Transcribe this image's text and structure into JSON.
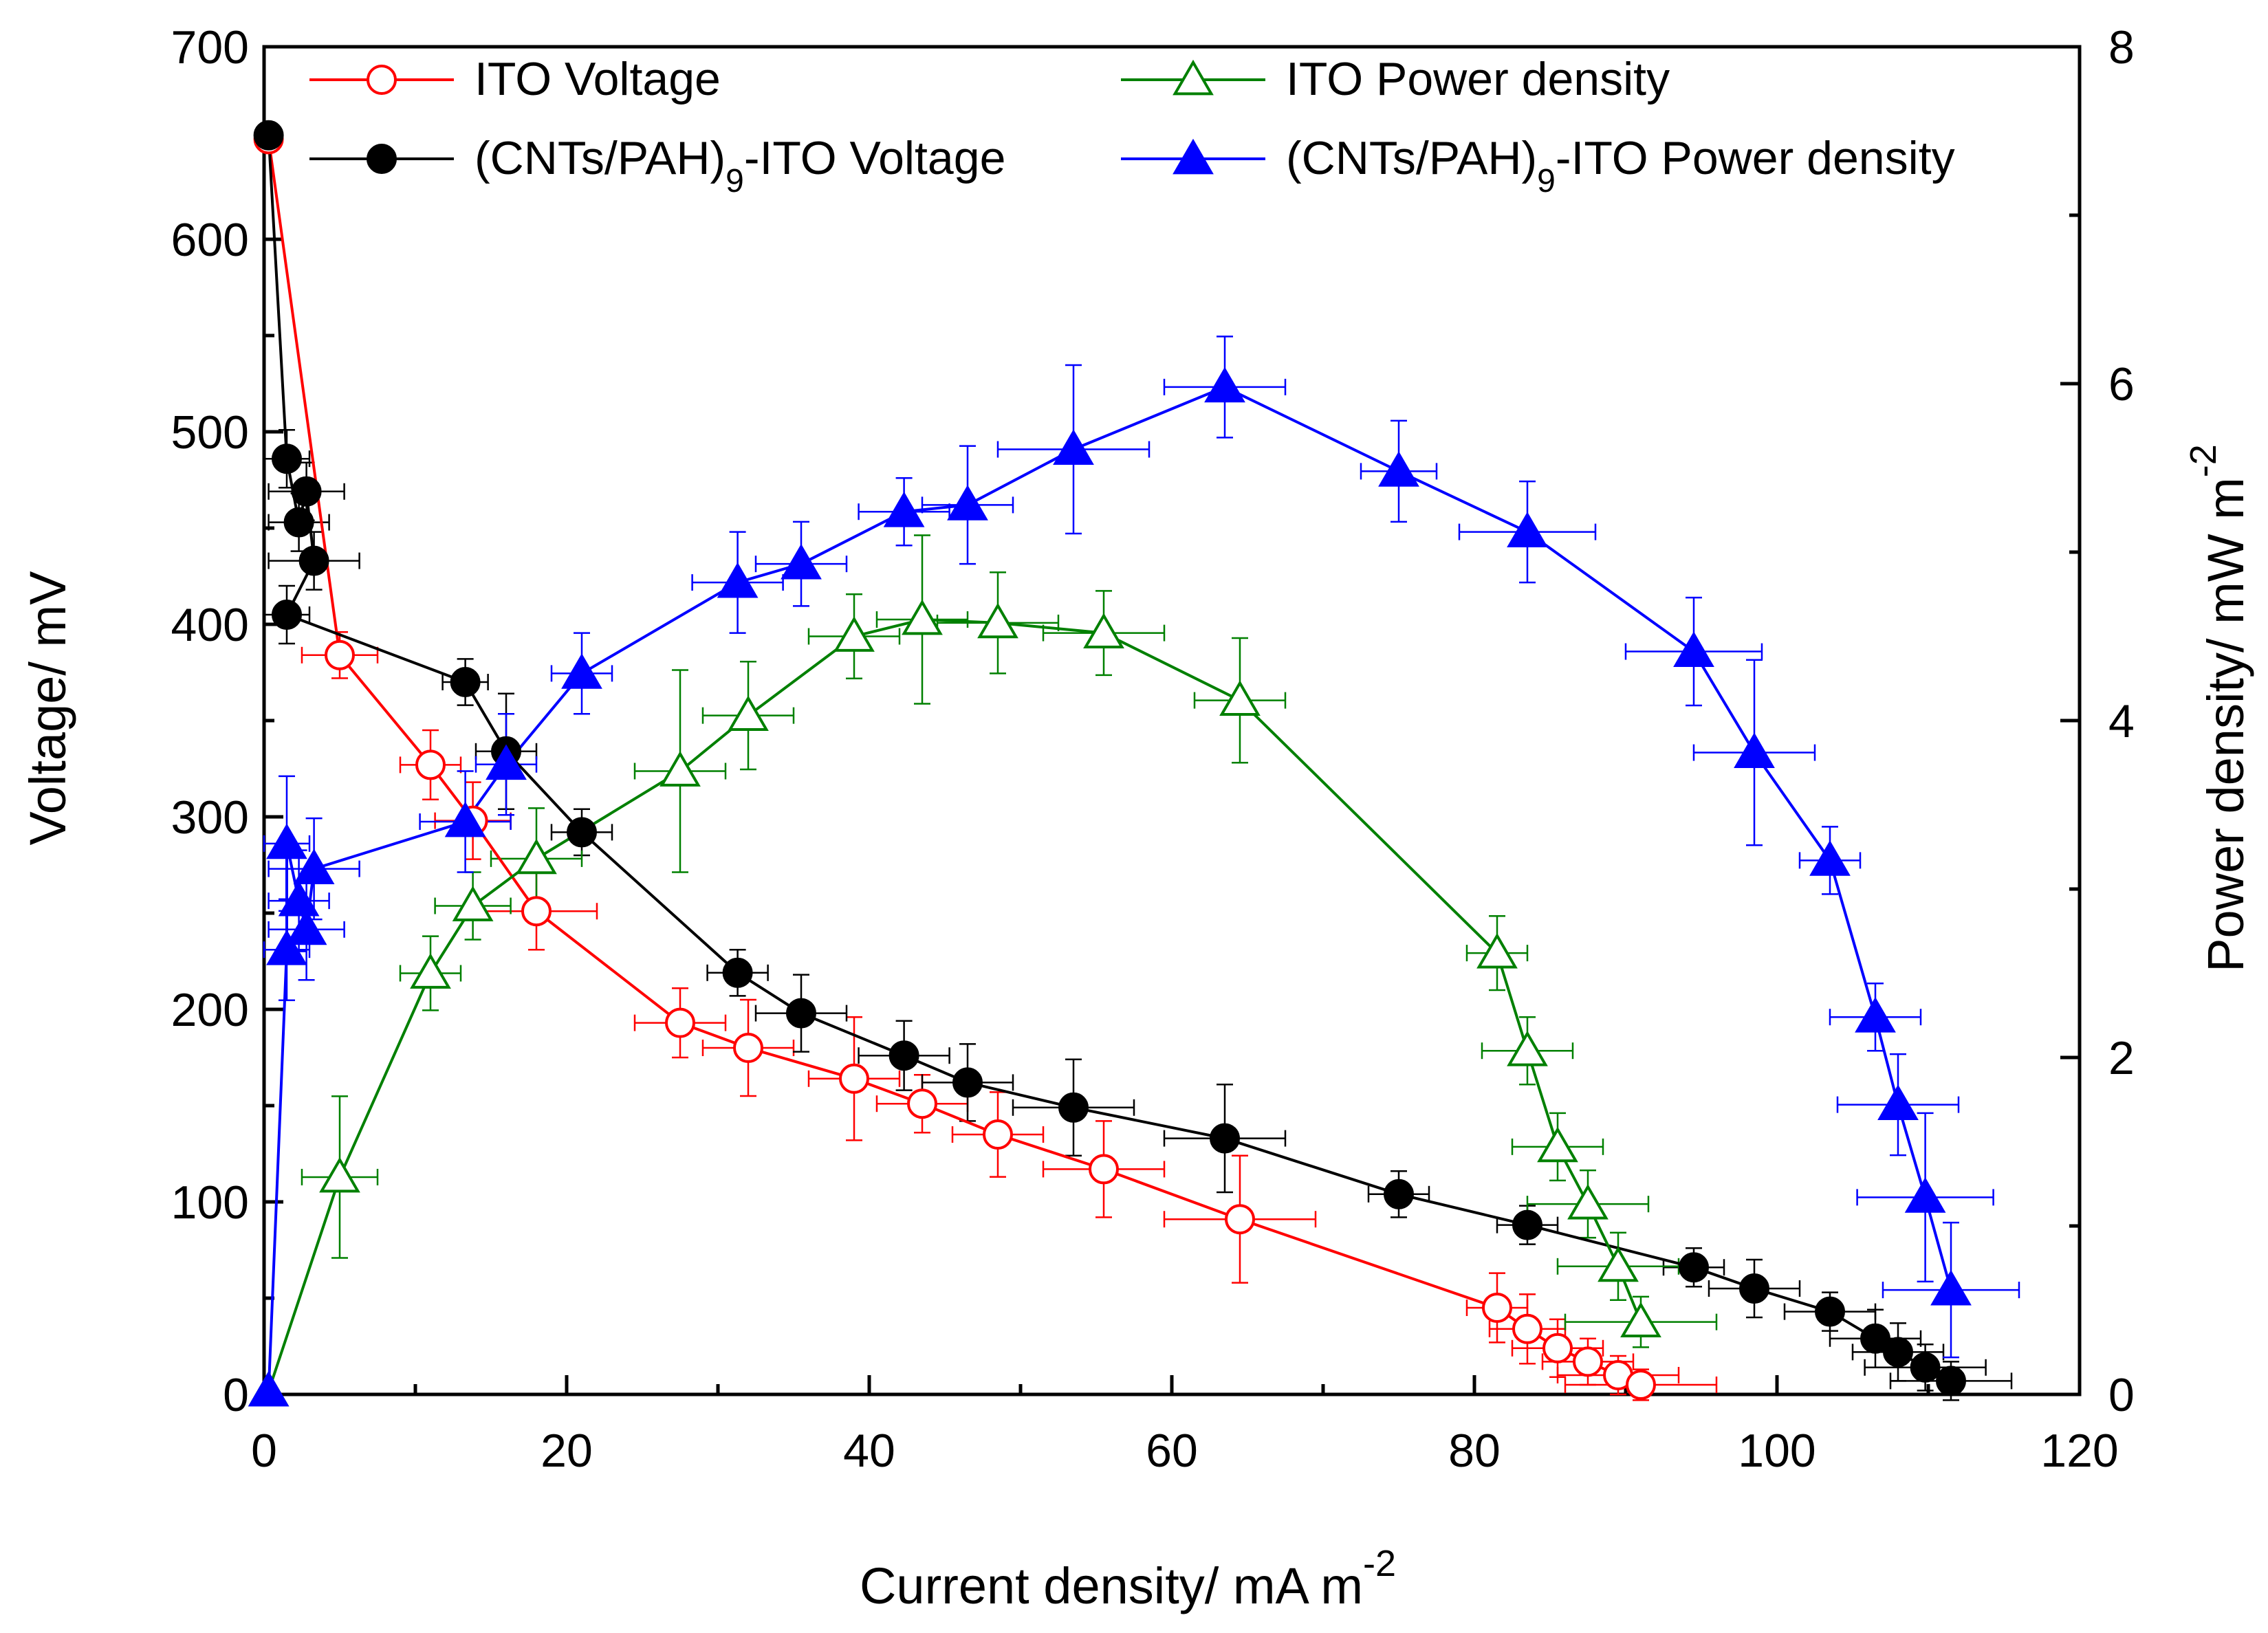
{
  "chart_data": {
    "type": "line",
    "xlabel": "Current density/ mA m",
    "xlabel_sup": "-2",
    "ylabel_left": "Voltage/ mV",
    "ylabel_right": "Power density/ mW m",
    "ylabel_right_sup": "-2",
    "xlim": [
      0,
      120
    ],
    "ylim_left": [
      0,
      700
    ],
    "ylim_right": [
      0,
      8
    ],
    "x_ticks": [
      0,
      20,
      40,
      60,
      80,
      100,
      120
    ],
    "y_left_ticks": [
      0,
      100,
      200,
      300,
      400,
      500,
      600,
      700
    ],
    "y_right_ticks": [
      0,
      2,
      4,
      6,
      8
    ],
    "series": [
      {
        "name": "ITO Voltage",
        "legend_main": "ITO Voltage",
        "legend_sub": "",
        "legend_tail": "",
        "axis": "left",
        "marker": "circle-open",
        "color": "#ff0000",
        "points": [
          {
            "x": 0.3,
            "y": 652,
            "ex": 0,
            "ey": 0
          },
          {
            "x": 5,
            "y": 384,
            "ex": 2.5,
            "ey": 12
          },
          {
            "x": 11,
            "y": 327,
            "ex": 2,
            "ey": 18
          },
          {
            "x": 13.8,
            "y": 298,
            "ex": 2.5,
            "ey": 20
          },
          {
            "x": 18,
            "y": 251,
            "ex": 4,
            "ey": 20
          },
          {
            "x": 27.5,
            "y": 193,
            "ex": 3,
            "ey": 18
          },
          {
            "x": 32,
            "y": 180,
            "ex": 3,
            "ey": 25
          },
          {
            "x": 39,
            "y": 164,
            "ex": 3,
            "ey": 32
          },
          {
            "x": 43.5,
            "y": 151,
            "ex": 3,
            "ey": 15
          },
          {
            "x": 48.5,
            "y": 135,
            "ex": 3,
            "ey": 22
          },
          {
            "x": 55.5,
            "y": 117,
            "ex": 4,
            "ey": 25
          },
          {
            "x": 64.5,
            "y": 91,
            "ex": 5,
            "ey": 33
          },
          {
            "x": 81.5,
            "y": 45,
            "ex": 2,
            "ey": 18
          },
          {
            "x": 83.5,
            "y": 34,
            "ex": 2.5,
            "ey": 18
          },
          {
            "x": 85.5,
            "y": 24,
            "ex": 3,
            "ey": 15
          },
          {
            "x": 87.5,
            "y": 17,
            "ex": 3,
            "ey": 12
          },
          {
            "x": 89.5,
            "y": 10,
            "ex": 4,
            "ey": 10
          },
          {
            "x": 91,
            "y": 5,
            "ex": 5,
            "ey": 8
          }
        ]
      },
      {
        "name": "(CNTs/PAH)9-ITO Voltage",
        "legend_main": "(CNTs/PAH)",
        "legend_sub": "9",
        "legend_tail": "-ITO Voltage",
        "axis": "left",
        "marker": "circle-filled",
        "color": "#000000",
        "points": [
          {
            "x": 0.3,
            "y": 654,
            "ex": 0,
            "ey": 0
          },
          {
            "x": 1.5,
            "y": 486,
            "ex": 1.5,
            "ey": 15
          },
          {
            "x": 2.3,
            "y": 453,
            "ex": 2,
            "ey": 15
          },
          {
            "x": 2.8,
            "y": 469,
            "ex": 2.5,
            "ey": 15
          },
          {
            "x": 3.3,
            "y": 433,
            "ex": 3,
            "ey": 15
          },
          {
            "x": 1.5,
            "y": 405,
            "ex": 1.5,
            "ey": 15
          },
          {
            "x": 13.3,
            "y": 370,
            "ex": 1.5,
            "ey": 12
          },
          {
            "x": 16,
            "y": 334,
            "ex": 2,
            "ey": 30
          },
          {
            "x": 21,
            "y": 292,
            "ex": 2,
            "ey": 12
          },
          {
            "x": 31.3,
            "y": 219,
            "ex": 2,
            "ey": 12
          },
          {
            "x": 35.5,
            "y": 198,
            "ex": 3,
            "ey": 20
          },
          {
            "x": 42.3,
            "y": 176,
            "ex": 3,
            "ey": 18
          },
          {
            "x": 46.5,
            "y": 162,
            "ex": 3,
            "ey": 20
          },
          {
            "x": 53.5,
            "y": 149,
            "ex": 4,
            "ey": 25
          },
          {
            "x": 63.5,
            "y": 133,
            "ex": 4,
            "ey": 28
          },
          {
            "x": 75,
            "y": 104,
            "ex": 2,
            "ey": 12
          },
          {
            "x": 83.5,
            "y": 88,
            "ex": 2,
            "ey": 10
          },
          {
            "x": 94.5,
            "y": 66,
            "ex": 2,
            "ey": 10
          },
          {
            "x": 98.5,
            "y": 55,
            "ex": 3,
            "ey": 15
          },
          {
            "x": 103.5,
            "y": 43,
            "ex": 3,
            "ey": 10
          },
          {
            "x": 106.5,
            "y": 29,
            "ex": 3,
            "ey": 15
          },
          {
            "x": 108,
            "y": 22,
            "ex": 3,
            "ey": 15
          },
          {
            "x": 109.8,
            "y": 14,
            "ex": 4,
            "ey": 12
          },
          {
            "x": 111.5,
            "y": 7,
            "ex": 4,
            "ey": 10
          }
        ]
      },
      {
        "name": "ITO Power density",
        "legend_main": "ITO Power density",
        "legend_sub": "",
        "legend_tail": "",
        "axis": "right",
        "marker": "triangle-open",
        "color": "#008000",
        "points": [
          {
            "x": 0.3,
            "y": 0.02,
            "ex": 0,
            "ey": 0
          },
          {
            "x": 5,
            "y": 1.29,
            "ex": 2.5,
            "ey": 0.48
          },
          {
            "x": 11,
            "y": 2.5,
            "ex": 2,
            "ey": 0.22
          },
          {
            "x": 13.8,
            "y": 2.9,
            "ex": 2.5,
            "ey": 0.2
          },
          {
            "x": 18,
            "y": 3.18,
            "ex": 3,
            "ey": 0.3
          },
          {
            "x": 27.5,
            "y": 3.7,
            "ex": 3,
            "ey": 0.6
          },
          {
            "x": 32,
            "y": 4.03,
            "ex": 3,
            "ey": 0.32
          },
          {
            "x": 39,
            "y": 4.5,
            "ex": 3,
            "ey": 0.25
          },
          {
            "x": 43.5,
            "y": 4.6,
            "ex": 3,
            "ey": 0.5
          },
          {
            "x": 48.5,
            "y": 4.58,
            "ex": 4,
            "ey": 0.3
          },
          {
            "x": 55.5,
            "y": 4.52,
            "ex": 4,
            "ey": 0.25
          },
          {
            "x": 64.5,
            "y": 4.12,
            "ex": 3,
            "ey": 0.37
          },
          {
            "x": 81.5,
            "y": 2.62,
            "ex": 2,
            "ey": 0.22
          },
          {
            "x": 83.5,
            "y": 2.04,
            "ex": 3,
            "ey": 0.2
          },
          {
            "x": 85.5,
            "y": 1.47,
            "ex": 3,
            "ey": 0.2
          },
          {
            "x": 87.5,
            "y": 1.13,
            "ex": 4,
            "ey": 0.2
          },
          {
            "x": 89.5,
            "y": 0.76,
            "ex": 4,
            "ey": 0.2
          },
          {
            "x": 91,
            "y": 0.43,
            "ex": 5,
            "ey": 0.15
          }
        ]
      },
      {
        "name": "(CNTs/PAH)9-ITO Power density",
        "legend_main": "(CNTs/PAH)",
        "legend_sub": "9",
        "legend_tail": "-ITO Power density",
        "axis": "right",
        "marker": "triangle-filled",
        "color": "#0000ff",
        "points": [
          {
            "x": 0.3,
            "y": 0.02,
            "ex": 0,
            "ey": 0
          },
          {
            "x": 1.5,
            "y": 2.64,
            "ex": 1.5,
            "ey": 0.3
          },
          {
            "x": 1.5,
            "y": 3.27,
            "ex": 1.5,
            "ey": 0.4
          },
          {
            "x": 2.3,
            "y": 2.93,
            "ex": 2,
            "ey": 0.3
          },
          {
            "x": 2.8,
            "y": 2.76,
            "ex": 2.5,
            "ey": 0.3
          },
          {
            "x": 3.3,
            "y": 3.12,
            "ex": 3,
            "ey": 0.3
          },
          {
            "x": 13.3,
            "y": 3.4,
            "ex": 3,
            "ey": 0.3
          },
          {
            "x": 16,
            "y": 3.74,
            "ex": 2,
            "ey": 0.3
          },
          {
            "x": 21,
            "y": 4.28,
            "ex": 2,
            "ey": 0.24
          },
          {
            "x": 31.3,
            "y": 4.82,
            "ex": 3,
            "ey": 0.3
          },
          {
            "x": 35.5,
            "y": 4.93,
            "ex": 3,
            "ey": 0.25
          },
          {
            "x": 42.3,
            "y": 5.24,
            "ex": 3,
            "ey": 0.2
          },
          {
            "x": 46.5,
            "y": 5.28,
            "ex": 3,
            "ey": 0.35
          },
          {
            "x": 53.5,
            "y": 5.61,
            "ex": 5,
            "ey": 0.5
          },
          {
            "x": 63.5,
            "y": 5.98,
            "ex": 4,
            "ey": 0.3
          },
          {
            "x": 75,
            "y": 5.48,
            "ex": 2.5,
            "ey": 0.3
          },
          {
            "x": 83.5,
            "y": 5.12,
            "ex": 4.5,
            "ey": 0.3
          },
          {
            "x": 94.5,
            "y": 4.41,
            "ex": 4.5,
            "ey": 0.32
          },
          {
            "x": 98.5,
            "y": 3.81,
            "ex": 4,
            "ey": 0.55
          },
          {
            "x": 103.5,
            "y": 3.17,
            "ex": 2,
            "ey": 0.2
          },
          {
            "x": 106.5,
            "y": 2.24,
            "ex": 3,
            "ey": 0.2
          },
          {
            "x": 108,
            "y": 1.72,
            "ex": 4,
            "ey": 0.3
          },
          {
            "x": 109.8,
            "y": 1.17,
            "ex": 4.5,
            "ey": 0.5
          },
          {
            "x": 111.5,
            "y": 0.62,
            "ex": 4.5,
            "ey": 0.4
          }
        ]
      }
    ]
  }
}
